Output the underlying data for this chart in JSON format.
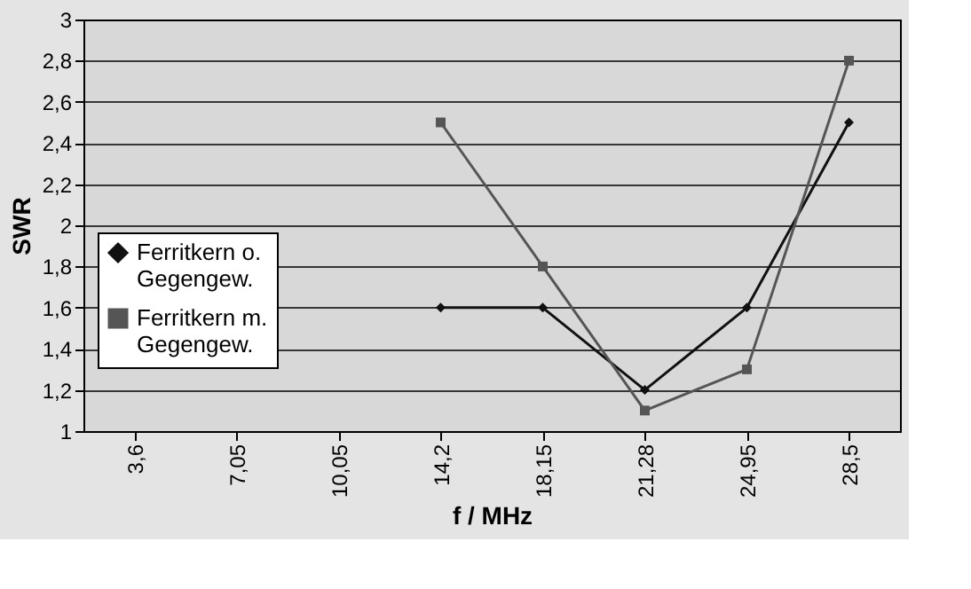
{
  "chart_data": {
    "type": "line",
    "xlabel": "f / MHz",
    "ylabel": "SWR",
    "categories": [
      "3,6",
      "7,05",
      "10,05",
      "14,2",
      "18,15",
      "21,28",
      "24,95",
      "28,5"
    ],
    "series": [
      {
        "name": "Ferritkern o. Gegengew.",
        "color": "#111111",
        "marker": "diamond",
        "values": [
          null,
          null,
          null,
          1.6,
          1.6,
          1.2,
          1.6,
          2.5
        ]
      },
      {
        "name": "Ferritkern m. Gegengew.",
        "color": "#555555",
        "marker": "square",
        "values": [
          null,
          null,
          null,
          2.5,
          1.8,
          1.1,
          1.3,
          2.8
        ]
      }
    ],
    "ylim": [
      1,
      3
    ],
    "yticks": [
      {
        "value": 1,
        "label": "1"
      },
      {
        "value": 1.2,
        "label": "1,2"
      },
      {
        "value": 1.4,
        "label": "1,4"
      },
      {
        "value": 1.6,
        "label": "1,6"
      },
      {
        "value": 1.8,
        "label": "1,8"
      },
      {
        "value": 2,
        "label": "2"
      },
      {
        "value": 2.2,
        "label": "2,2"
      },
      {
        "value": 2.4,
        "label": "2,4"
      },
      {
        "value": 2.6,
        "label": "2,6"
      },
      {
        "value": 2.8,
        "label": "2,8"
      },
      {
        "value": 3,
        "label": "3"
      }
    ],
    "grid": "y",
    "legend": "bottom left",
    "line_style": "solid"
  }
}
